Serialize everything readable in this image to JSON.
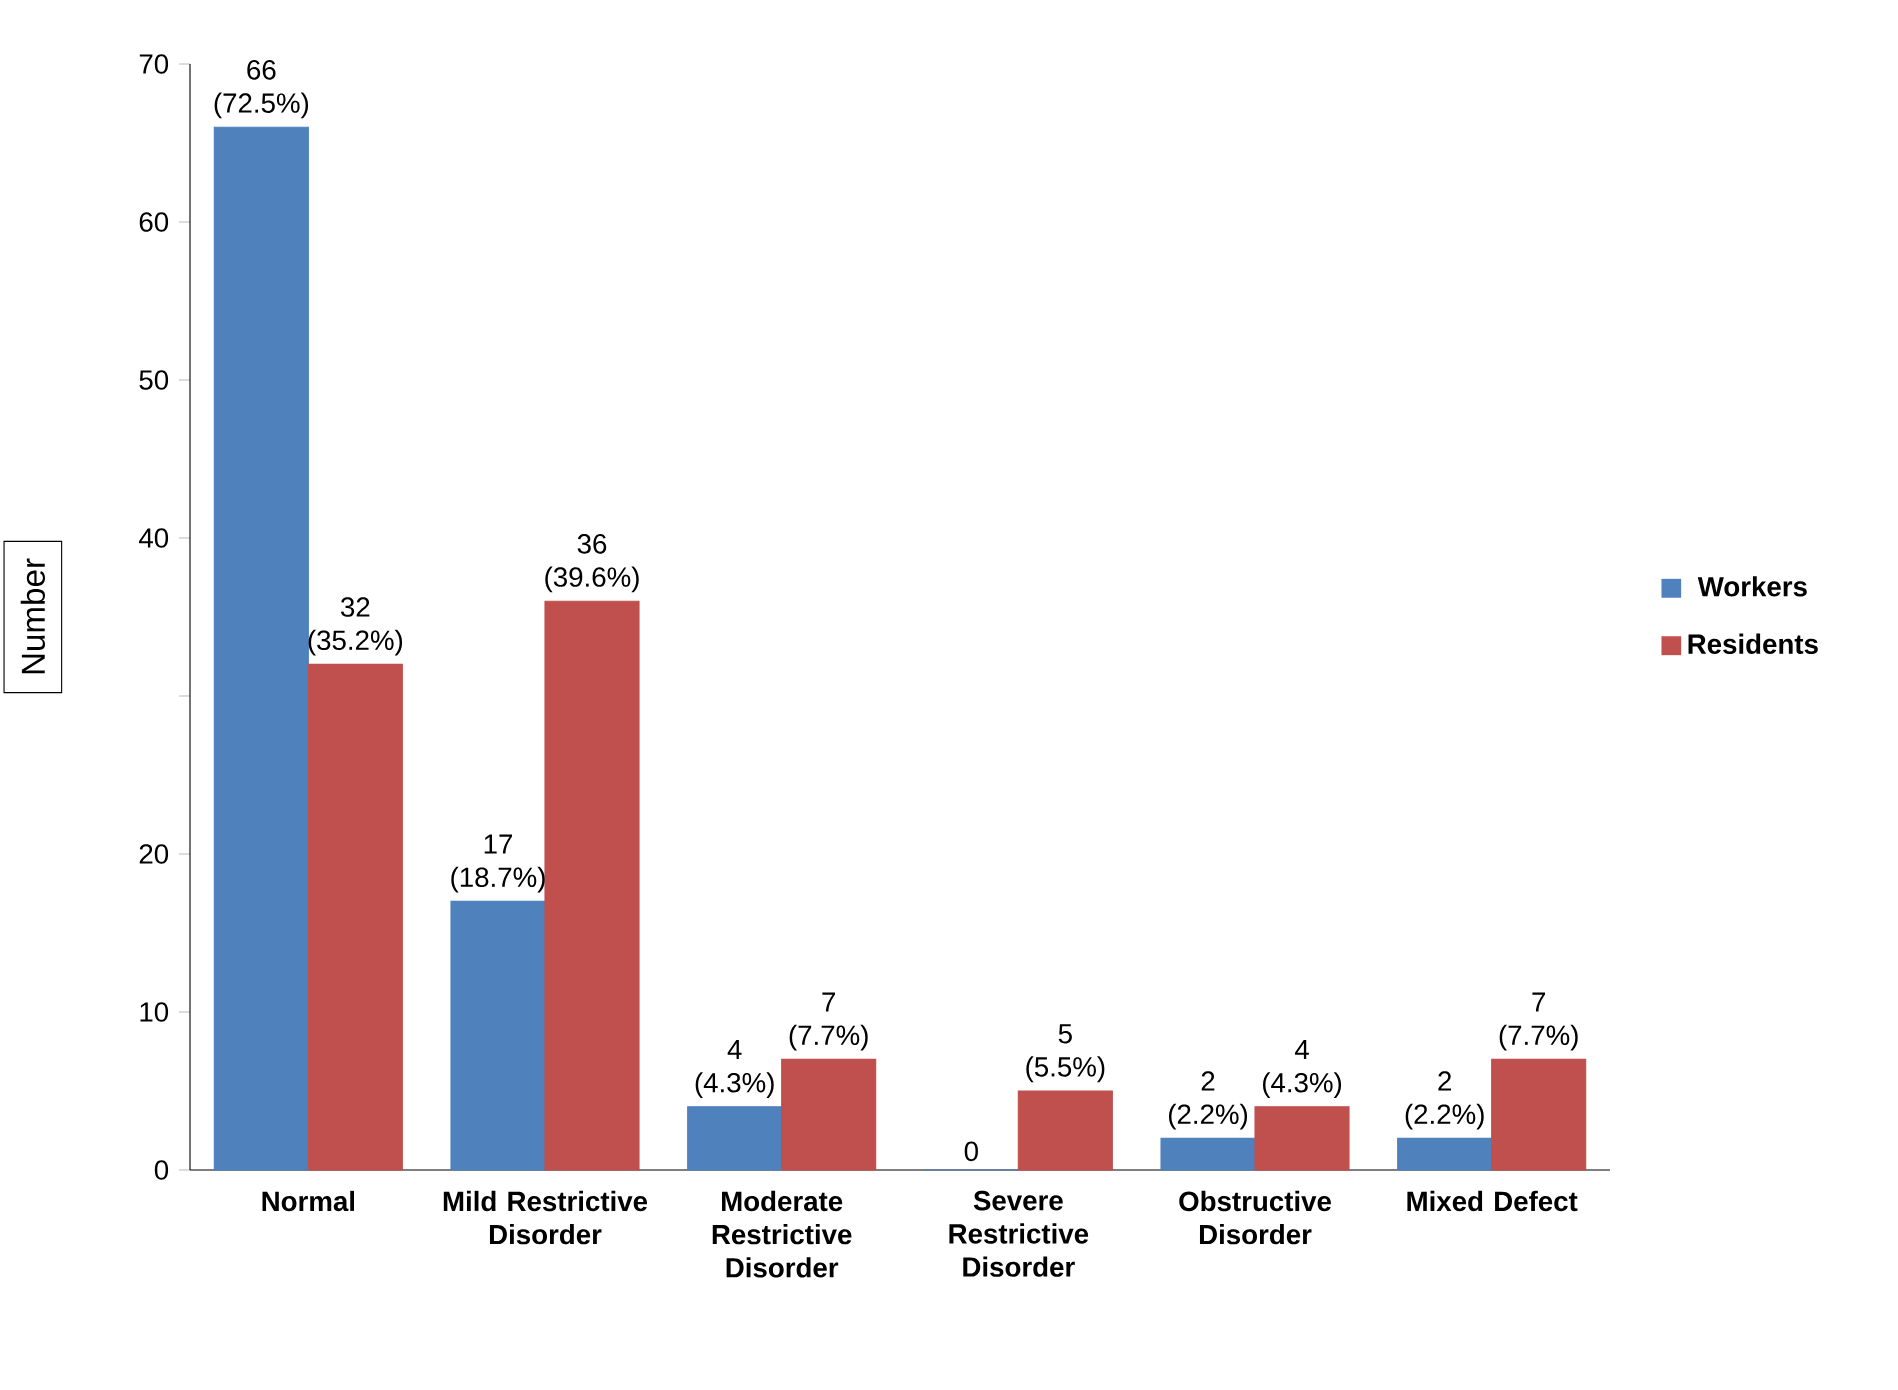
{
  "chart_data": {
    "type": "bar",
    "ylabel": "Number",
    "categories": [
      "Normal",
      "Mild Restrictive Disorder",
      "Moderate Restrictive Disorder",
      "Severe Restrictive Disorder",
      "Obstructive Disorder",
      "Mixed Defect"
    ],
    "series": [
      {
        "name": "Workers",
        "color": "#4f81bd",
        "values": [
          66,
          17,
          4,
          0,
          2,
          2
        ],
        "value_labels": [
          "66 (72.5%)",
          "17 (18.7%)",
          "4 (4.3%)",
          "0",
          "2 (2.2%)",
          "2 (2.2%)"
        ]
      },
      {
        "name": "Residents",
        "color": "#c0504d",
        "values": [
          32,
          36,
          7,
          5,
          4,
          7
        ],
        "value_labels": [
          "32 (35.2%)",
          "36 (39.6%)",
          "7 (7.7%)",
          "5 (5.5%)",
          "4 (4.3%)",
          "7 (7.7%)"
        ]
      }
    ],
    "ylim": [
      0,
      70
    ],
    "yticks": [
      0,
      10,
      20,
      {
        "value": 30,
        "label": null
      },
      40,
      50,
      60,
      70
    ],
    "grid": false,
    "legend": "right"
  }
}
